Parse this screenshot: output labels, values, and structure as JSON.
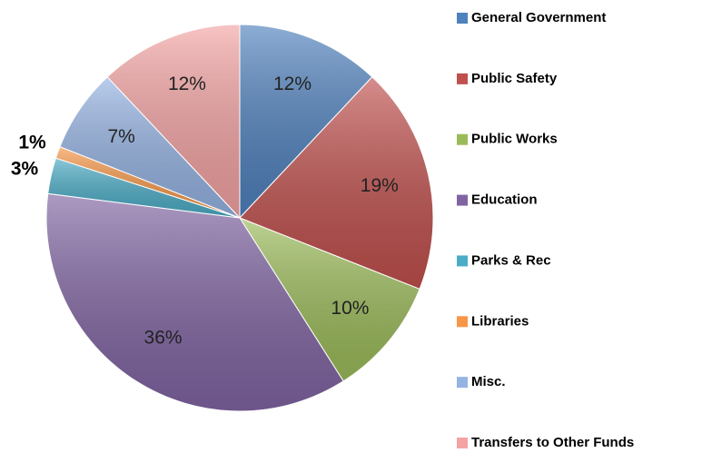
{
  "chart_data": {
    "type": "pie",
    "categories": [
      "General Government",
      "Public Safety",
      "Public Works",
      "Education",
      "Parks & Rec",
      "Libraries",
      "Misc.",
      "Transfers to Other Funds"
    ],
    "values": [
      12,
      19,
      10,
      36,
      3,
      1,
      7,
      12
    ],
    "value_labels": [
      "12%",
      "19%",
      "10%",
      "36%",
      "3%",
      "1%",
      "7%",
      "12%"
    ],
    "colors": [
      "#4f81bd",
      "#c0504d",
      "#9bbb59",
      "#8064a2",
      "#4bacc6",
      "#f79646",
      "#95b3e3",
      "#f4a3a3"
    ],
    "legend": "right"
  }
}
